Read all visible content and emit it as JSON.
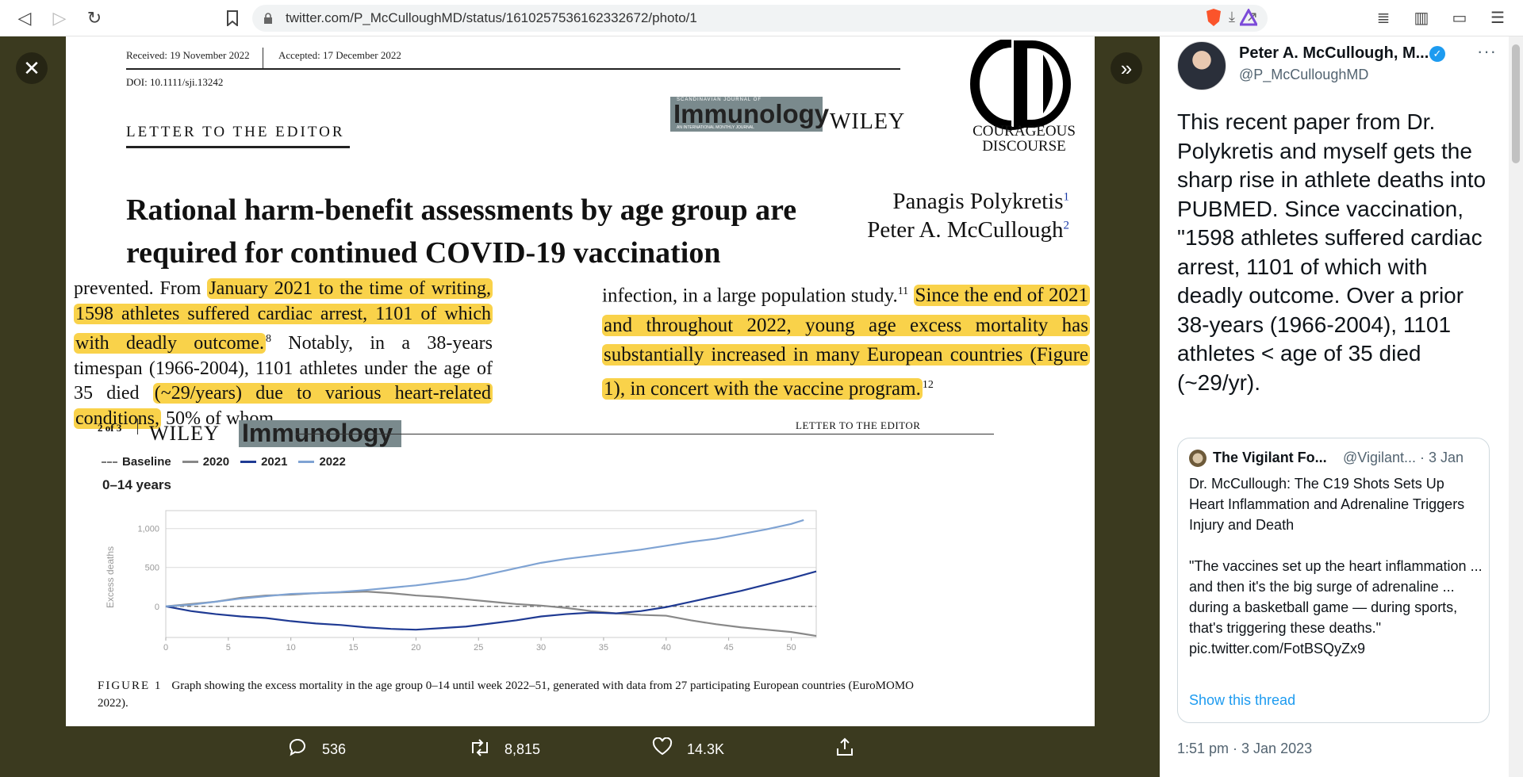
{
  "browser": {
    "url": "twitter.com/P_McCulloughMD/status/1610257536162332672/photo/1"
  },
  "paper": {
    "received": "Received: 19 November 2022",
    "accepted": "Accepted: 17 December 2022",
    "doi": "DOI: 10.1111/sji.13242",
    "journal_top": "SCANDINAVIAN JOURNAL OF",
    "journal_name": "Immunology",
    "journal_sub": "AN INTERNATIONAL MONTHLY JOURNAL",
    "publisher": "WILEY",
    "logo_line1": "COURAGEOUS",
    "logo_line2": "DISCOURSE",
    "section": "LETTER TO THE EDITOR",
    "title_line1": "Rational harm-benefit assessments by age group are",
    "title_line2": "required for continued COVID-19 vaccination",
    "author1": "Panagis Polykretis",
    "author1_sup": "1",
    "author2": "Peter A. McCullough",
    "author2_sup": "2",
    "left_col": {
      "p1": "prevented. From ",
      "h1": "January 2021 to the time of writing, 1598 athletes suffered cardiac arrest, 1101 of which with deadly outcome.",
      "sup1": "8",
      "p2": " Notably, in a 38-years timespan (1966-2004), 1101 athletes under the age of 35 died ",
      "h2": "(~29/years) due to various heart-related conditions,",
      "p3": " 50% of whom"
    },
    "right_col": {
      "p1": "infection, in a large population study.",
      "sup1": "11",
      "h1": "Since the end of 2021 and throughout 2022, young age excess mortality has substantially increased in many European countries (Figure 1), in concert with the vaccine program.",
      "sup2": "12"
    },
    "figure": {
      "page": "2 of 3",
      "header_right": "LETTER TO THE EDITOR",
      "age_group": "0–14 years",
      "caption_label": "FIGURE 1",
      "caption_text": "Graph showing the excess mortality in the age group 0–14 until week 2022–51, generated with data from 27 participating European countries (EuroMOMO 2022)."
    }
  },
  "chart_data": {
    "type": "line",
    "ylabel": "Excess deaths",
    "xlim": [
      0,
      52
    ],
    "ylim": [
      -400,
      1150
    ],
    "x_ticks": [
      0,
      5,
      10,
      15,
      20,
      25,
      30,
      35,
      40,
      45,
      50
    ],
    "y_ticks": [
      0,
      500,
      1000
    ],
    "y_tick_labels": [
      "0",
      "500",
      "1,000"
    ],
    "legend": [
      "Baseline",
      "2020",
      "2021",
      "2022"
    ],
    "series": [
      {
        "name": "Baseline",
        "color": "#777777",
        "style": "dashed",
        "x": [
          0,
          52
        ],
        "values": [
          0,
          0
        ]
      },
      {
        "name": "2020",
        "color": "#888888",
        "x": [
          0,
          2,
          4,
          6,
          8,
          10,
          12,
          14,
          16,
          18,
          20,
          22,
          24,
          26,
          28,
          30,
          32,
          34,
          36,
          38,
          40,
          42,
          44,
          46,
          48,
          50,
          52
        ],
        "values": [
          0,
          30,
          60,
          110,
          140,
          150,
          170,
          180,
          190,
          170,
          140,
          120,
          90,
          60,
          30,
          10,
          -20,
          -60,
          -90,
          -110,
          -120,
          -180,
          -230,
          -270,
          -300,
          -330,
          -380
        ]
      },
      {
        "name": "2021",
        "color": "#1f3a93",
        "x": [
          0,
          2,
          4,
          6,
          8,
          10,
          12,
          14,
          16,
          18,
          20,
          22,
          24,
          26,
          28,
          30,
          32,
          34,
          36,
          38,
          40,
          42,
          44,
          46,
          48,
          50,
          52
        ],
        "values": [
          0,
          -60,
          -100,
          -130,
          -150,
          -190,
          -220,
          -240,
          -270,
          -290,
          -300,
          -280,
          -260,
          -220,
          -180,
          -130,
          -100,
          -80,
          -90,
          -60,
          -10,
          60,
          130,
          200,
          280,
          360,
          450
        ]
      },
      {
        "name": "2022",
        "color": "#7fa3d3",
        "x": [
          0,
          2,
          4,
          6,
          8,
          10,
          12,
          14,
          16,
          18,
          20,
          22,
          24,
          26,
          28,
          30,
          32,
          34,
          36,
          38,
          40,
          42,
          44,
          46,
          48,
          50,
          51
        ],
        "values": [
          0,
          20,
          60,
          100,
          130,
          160,
          170,
          185,
          210,
          240,
          270,
          310,
          350,
          420,
          490,
          560,
          610,
          650,
          690,
          730,
          780,
          830,
          870,
          930,
          990,
          1060,
          1110
        ]
      }
    ]
  },
  "actions": {
    "replies": "536",
    "retweets": "8,815",
    "likes": "14.3K"
  },
  "tweet": {
    "name": "Peter A. McCullough, M...",
    "handle": "@P_McCulloughMD",
    "text": "This recent paper from Dr. Polykretis and myself gets the sharp rise in athlete deaths into PUBMED. Since vaccination, \"1598 athletes suffered cardiac arrest, 1101 of which with deadly outcome. Over a prior 38-years (1966-2004), 1101 athletes < age of 35 died (~29/yr).",
    "timestamp": "1:51 pm · 3 Jan 2023",
    "quote": {
      "name": "The Vigilant Fo...",
      "handle": "@Vigilant... · 3 Jan",
      "text": "Dr. McCullough: The C19 Shots Sets Up Heart Inflammation and Adrenaline Triggers Injury and Death\n\n\"The vaccines set up the heart inflammation ... and then it's the big surge of adrenaline ... during a basketball game — during sports, that's triggering these deaths.\"\npic.twitter.com/FotBSQyZx9",
      "show_thread": "Show this thread"
    }
  },
  "icons": {
    "back": "◁",
    "forward": "▷",
    "reload": "↻",
    "bookmark": "🔖",
    "close": "✕",
    "expand": "»",
    "reply": "💬",
    "retweet": "🔁",
    "like": "♡",
    "share": "⇧"
  }
}
